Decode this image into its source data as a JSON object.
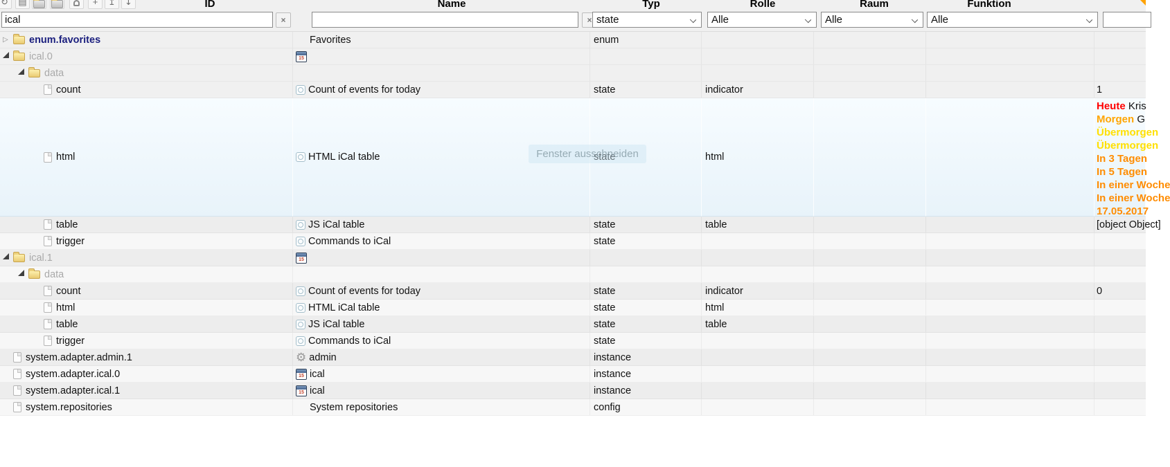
{
  "toolbar": {
    "buttons": [
      {
        "name": "refresh-button",
        "glyph": "↻"
      },
      {
        "name": "list-view-button",
        "glyph": "▤"
      },
      {
        "name": "collapse-all-button",
        "glyph": "folder"
      },
      {
        "name": "expand-all-button",
        "glyph": "folder"
      },
      {
        "name": "expert-mode-button",
        "glyph": "person"
      },
      {
        "name": "add-object-button",
        "glyph": "+"
      },
      {
        "name": "upload-button",
        "glyph": "↥"
      },
      {
        "name": "download-button",
        "glyph": "↧"
      }
    ]
  },
  "columns": [
    {
      "key": "id",
      "label": "ID"
    },
    {
      "key": "name",
      "label": "Name"
    },
    {
      "key": "typ",
      "label": "Typ"
    },
    {
      "key": "rolle",
      "label": "Rolle"
    },
    {
      "key": "raum",
      "label": "Raum"
    },
    {
      "key": "funktion",
      "label": "Funktion"
    }
  ],
  "filters": {
    "id": {
      "value": "ical",
      "clear_label": "×"
    },
    "name": {
      "value": "",
      "clear_label": "×"
    },
    "typ": "state",
    "rolle": "Alle",
    "raum": "Alle",
    "funktion": "Alle",
    "wert": ""
  },
  "icons": {
    "calendar_day": "15"
  },
  "overlay": {
    "text": "Fenster ausschneiden"
  },
  "rows": [
    {
      "id": "enum.favorites",
      "id_style": "favorite",
      "toggle": "collapsed",
      "id_icon": "folder",
      "indent": 0,
      "name_icon": "none",
      "name": "Favorites",
      "typ": "enum",
      "rolle": "",
      "wert": ""
    },
    {
      "id": "ical.0",
      "id_style": "muted",
      "toggle": "expanded",
      "id_icon": "folder",
      "indent": 0,
      "name_icon": "calendar",
      "name": "",
      "typ": "",
      "rolle": "",
      "wert": ""
    },
    {
      "id": "data",
      "id_style": "muted",
      "toggle": "expanded",
      "id_icon": "folder",
      "indent": 1,
      "name_icon": "none",
      "name": "",
      "typ": "",
      "rolle": "",
      "wert": ""
    },
    {
      "id": "count",
      "id_style": "normal",
      "toggle": "none",
      "id_icon": "file",
      "indent": 2,
      "name_icon": "state",
      "name": "Count of events for today",
      "typ": "state",
      "rolle": "indicator",
      "wert": "1"
    },
    {
      "id": "html",
      "id_style": "normal",
      "toggle": "none",
      "id_icon": "file",
      "indent": 2,
      "name_icon": "state",
      "name": "HTML iCal table",
      "typ": "state",
      "rolle": "html",
      "wert": "",
      "tall": true,
      "selected": true,
      "wert_html": true
    },
    {
      "id": "table",
      "id_style": "normal",
      "toggle": "none",
      "id_icon": "file",
      "indent": 2,
      "name_icon": "state",
      "name": "JS iCal table",
      "typ": "state",
      "rolle": "table",
      "wert": "[object Object]"
    },
    {
      "id": "trigger",
      "id_style": "normal",
      "toggle": "none",
      "id_icon": "file",
      "indent": 2,
      "name_icon": "state",
      "name": "Commands to iCal",
      "typ": "state",
      "rolle": "",
      "wert": ""
    },
    {
      "id": "ical.1",
      "id_style": "muted",
      "toggle": "expanded",
      "id_icon": "folder",
      "indent": 0,
      "name_icon": "calendar",
      "name": "",
      "typ": "",
      "rolle": "",
      "wert": ""
    },
    {
      "id": "data",
      "id_style": "muted",
      "toggle": "expanded",
      "id_icon": "folder",
      "indent": 1,
      "name_icon": "none",
      "name": "",
      "typ": "",
      "rolle": "",
      "wert": ""
    },
    {
      "id": "count",
      "id_style": "normal",
      "toggle": "none",
      "id_icon": "file",
      "indent": 2,
      "name_icon": "state",
      "name": "Count of events for today",
      "typ": "state",
      "rolle": "indicator",
      "wert": "0"
    },
    {
      "id": "html",
      "id_style": "normal",
      "toggle": "none",
      "id_icon": "file",
      "indent": 2,
      "name_icon": "state",
      "name": "HTML iCal table",
      "typ": "state",
      "rolle": "html",
      "wert": ""
    },
    {
      "id": "table",
      "id_style": "normal",
      "toggle": "none",
      "id_icon": "file",
      "indent": 2,
      "name_icon": "state",
      "name": "JS iCal table",
      "typ": "state",
      "rolle": "table",
      "wert": ""
    },
    {
      "id": "trigger",
      "id_style": "normal",
      "toggle": "none",
      "id_icon": "file",
      "indent": 2,
      "name_icon": "state",
      "name": "Commands to iCal",
      "typ": "state",
      "rolle": "",
      "wert": ""
    },
    {
      "id": "system.adapter.admin.1",
      "id_style": "normal",
      "toggle": "none",
      "id_icon": "file",
      "indent": 0,
      "name_icon": "gear",
      "name": "admin",
      "typ": "instance",
      "rolle": "",
      "wert": ""
    },
    {
      "id": "system.adapter.ical.0",
      "id_style": "normal",
      "toggle": "none",
      "id_icon": "file",
      "indent": 0,
      "name_icon": "calendar",
      "name": "ical",
      "typ": "instance",
      "rolle": "",
      "wert": ""
    },
    {
      "id": "system.adapter.ical.1",
      "id_style": "normal",
      "toggle": "none",
      "id_icon": "file",
      "indent": 0,
      "name_icon": "calendar",
      "name": "ical",
      "typ": "instance",
      "rolle": "",
      "wert": ""
    },
    {
      "id": "system.repositories",
      "id_style": "normal",
      "toggle": "none",
      "id_icon": "file",
      "indent": 0,
      "name_icon": "none",
      "name": "System repositories",
      "typ": "config",
      "rolle": "",
      "wert": ""
    }
  ],
  "html_value": {
    "lines": [
      {
        "label": "Heute",
        "color": "#ff0000",
        "rest": " Kris"
      },
      {
        "label": "Morgen",
        "color": "#ffa500",
        "rest": " G"
      },
      {
        "label": "Übermorgen",
        "color": "#ffe000",
        "rest": ""
      },
      {
        "label": "Übermorgen",
        "color": "#ffe000",
        "rest": ""
      },
      {
        "label": "In 3 Tagen",
        "color": "#ff8c00",
        "rest": ""
      },
      {
        "label": "In 5 Tagen",
        "color": "#ff8c00",
        "rest": ""
      },
      {
        "label": "In einer Woche",
        "color": "#ff8c00",
        "rest": ""
      },
      {
        "label": "In einer Woche",
        "color": "#ff8c00",
        "rest": ""
      },
      {
        "label": "17.05.2017",
        "color": "#ff8c00",
        "rest": ""
      }
    ]
  }
}
